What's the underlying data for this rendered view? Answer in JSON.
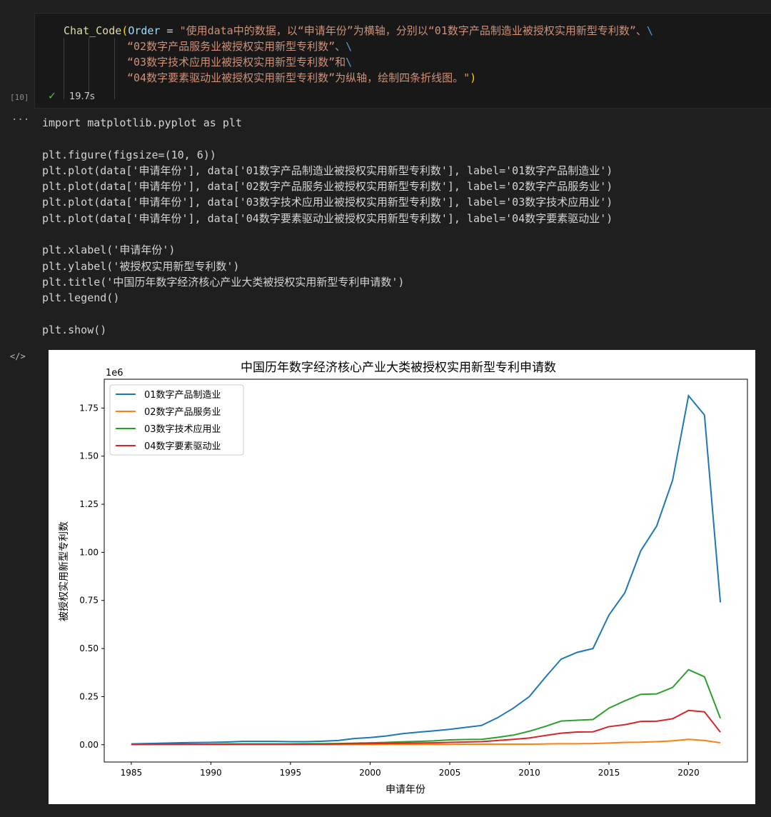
{
  "cell": {
    "exec_count": "[10]",
    "status": "success",
    "duration": "19.7s",
    "fn": "Chat_Code",
    "open": "(",
    "param": "Order",
    "eq": " = ",
    "lines": [
      "\"使用data中的数据，以“申请年份”为横轴，分别以“01数字产品制造业被授权实用新型专利数”、",
      "“02数字产品服务业被授权实用新型专利数”、",
      "“03数字技术应用业被授权实用新型专利数”和",
      "“04数字要素驱动业被授权实用新型专利数”为纵轴，绘制四条折线图。\""
    ],
    "continuation": "\\",
    "close": ")"
  },
  "output": {
    "more_label": "···",
    "code": "import matplotlib.pyplot as plt\n\nplt.figure(figsize=(10, 6))\nplt.plot(data['申请年份'], data['01数字产品制造业被授权实用新型专利数'], label='01数字产品制造业')\nplt.plot(data['申请年份'], data['02数字产品服务业被授权实用新型专利数'], label='02数字产品服务业')\nplt.plot(data['申请年份'], data['03数字技术应用业被授权实用新型专利数'], label='03数字技术应用业')\nplt.plot(data['申请年份'], data['04数字要素驱动业被授权实用新型专利数'], label='04数字要素驱动业')\n\nplt.xlabel('申请年份')\nplt.ylabel('被授权实用新型专利数')\nplt.title('中国历年数字经济核心产业大类被授权实用新型专利申请数')\nplt.legend()\n\nplt.show()",
    "output_icon": "code-icon"
  },
  "chart_data": {
    "type": "line",
    "title": "中国历年数字经济核心产业大类被授权实用新型专利申请数",
    "xlabel": "申请年份",
    "ylabel": "被授权实用新型专利数",
    "y_offset_label": "1e6",
    "xlim": [
      1983.3,
      2023.7
    ],
    "ylim": [
      -0.09,
      1.9
    ],
    "xticks": [
      1985,
      1990,
      1995,
      2000,
      2005,
      2010,
      2015,
      2020
    ],
    "yticks": [
      "0.00",
      "0.25",
      "0.50",
      "0.75",
      "1.00",
      "1.25",
      "1.50",
      "1.75"
    ],
    "legend": "top-left",
    "grid": false,
    "x": [
      1985,
      1986,
      1987,
      1988,
      1989,
      1990,
      1991,
      1992,
      1993,
      1994,
      1995,
      1996,
      1997,
      1998,
      1999,
      2000,
      2001,
      2002,
      2003,
      2004,
      2005,
      2006,
      2007,
      2008,
      2009,
      2010,
      2011,
      2012,
      2013,
      2014,
      2015,
      2016,
      2017,
      2018,
      2019,
      2020,
      2021,
      2022
    ],
    "series": [
      {
        "name": "01数字产品制造业",
        "color": "#1f77b4",
        "values": [
          0.004,
          0.006,
          0.008,
          0.01,
          0.011,
          0.012,
          0.014,
          0.017,
          0.017,
          0.017,
          0.016,
          0.016,
          0.018,
          0.022,
          0.032,
          0.037,
          0.045,
          0.057,
          0.065,
          0.072,
          0.08,
          0.09,
          0.1,
          0.14,
          0.19,
          0.25,
          0.35,
          0.445,
          0.48,
          0.5,
          0.674,
          0.79,
          1.008,
          1.137,
          1.375,
          1.814,
          1.714,
          0.74
        ]
      },
      {
        "name": "02数字产品服务业",
        "color": "#ff7f0e",
        "values": [
          0.001,
          0.001,
          0.001,
          0.001,
          0.001,
          0.001,
          0.001,
          0.001,
          0.001,
          0.001,
          0.001,
          0.001,
          0.001,
          0.001,
          0.001,
          0.001,
          0.002,
          0.002,
          0.002,
          0.002,
          0.002,
          0.003,
          0.003,
          0.003,
          0.003,
          0.003,
          0.004,
          0.005,
          0.005,
          0.006,
          0.009,
          0.012,
          0.013,
          0.016,
          0.02,
          0.028,
          0.022,
          0.01
        ]
      },
      {
        "name": "03数字技术应用业",
        "color": "#2ca02c",
        "values": [
          0.002,
          0.002,
          0.003,
          0.003,
          0.003,
          0.003,
          0.004,
          0.004,
          0.004,
          0.004,
          0.004,
          0.005,
          0.005,
          0.006,
          0.008,
          0.01,
          0.012,
          0.015,
          0.017,
          0.02,
          0.025,
          0.027,
          0.028,
          0.038,
          0.05,
          0.07,
          0.095,
          0.123,
          0.127,
          0.131,
          0.19,
          0.228,
          0.262,
          0.264,
          0.298,
          0.39,
          0.353,
          0.137
        ]
      },
      {
        "name": "04数字要素驱动业",
        "color": "#d62728",
        "values": [
          0.001,
          0.001,
          0.002,
          0.002,
          0.002,
          0.002,
          0.002,
          0.003,
          0.003,
          0.003,
          0.003,
          0.003,
          0.003,
          0.004,
          0.005,
          0.006,
          0.007,
          0.008,
          0.009,
          0.01,
          0.012,
          0.014,
          0.016,
          0.022,
          0.028,
          0.035,
          0.048,
          0.06,
          0.066,
          0.067,
          0.094,
          0.104,
          0.121,
          0.122,
          0.135,
          0.178,
          0.171,
          0.065
        ]
      }
    ]
  }
}
